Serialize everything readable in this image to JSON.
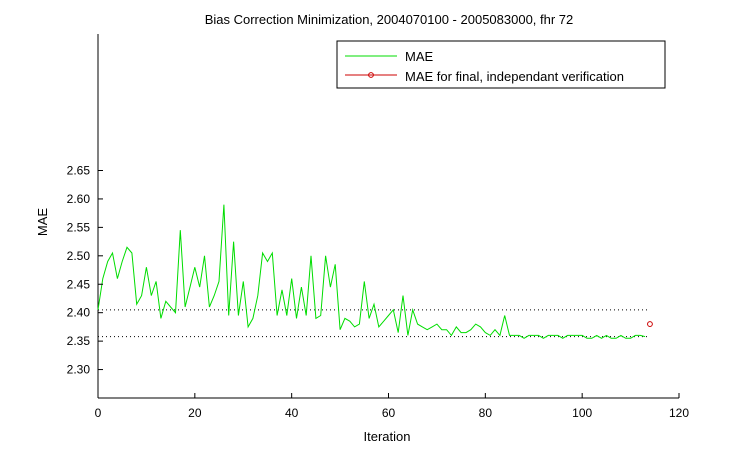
{
  "chart_data": {
    "type": "line",
    "title": "Bias Correction Minimization, 2004070100 - 2005083000, fhr 72",
    "xlabel": "Iteration",
    "ylabel": "MAE",
    "xlim": [
      0,
      120
    ],
    "ylim": [
      2.25,
      2.89
    ],
    "xticks": [
      0,
      20,
      40,
      60,
      80,
      100,
      120
    ],
    "yticks": [
      2.3,
      2.35,
      2.4,
      2.45,
      2.5,
      2.55,
      2.6,
      2.65
    ],
    "ytick_labels": [
      "2.30",
      "2.35",
      "2.40",
      "2.45",
      "2.50",
      "2.55",
      "2.60",
      "2.65"
    ],
    "xtick_labels": [
      "0",
      "20",
      "40",
      "60",
      "80",
      "100",
      "120"
    ],
    "grid": false,
    "legend_position": "top-right",
    "series": [
      {
        "name": "MAE",
        "color": "#00dd00",
        "x": [
          0,
          1,
          2,
          3,
          4,
          5,
          6,
          7,
          8,
          9,
          10,
          11,
          12,
          13,
          14,
          15,
          16,
          17,
          18,
          19,
          20,
          21,
          22,
          23,
          24,
          25,
          26,
          27,
          28,
          29,
          30,
          31,
          32,
          33,
          34,
          35,
          36,
          37,
          38,
          39,
          40,
          41,
          42,
          43,
          44,
          45,
          46,
          47,
          48,
          49,
          50,
          51,
          52,
          53,
          54,
          55,
          56,
          57,
          58,
          59,
          60,
          61,
          62,
          63,
          64,
          65,
          66,
          67,
          68,
          69,
          70,
          71,
          72,
          73,
          74,
          75,
          76,
          77,
          78,
          79,
          80,
          81,
          82,
          83,
          84,
          85,
          86,
          87,
          88,
          89,
          90,
          91,
          92,
          93,
          94,
          95,
          96,
          97,
          98,
          99,
          100,
          101,
          102,
          103,
          104,
          105,
          106,
          107,
          108,
          109,
          110,
          111,
          112,
          113
        ],
        "y": [
          2.405,
          2.46,
          2.49,
          2.505,
          2.46,
          2.49,
          2.515,
          2.505,
          2.415,
          2.43,
          2.48,
          2.43,
          2.455,
          2.39,
          2.42,
          2.41,
          2.4,
          2.545,
          2.41,
          2.445,
          2.48,
          2.445,
          2.5,
          2.41,
          2.43,
          2.455,
          2.59,
          2.395,
          2.525,
          2.395,
          2.455,
          2.375,
          2.39,
          2.43,
          2.505,
          2.49,
          2.505,
          2.395,
          2.44,
          2.395,
          2.46,
          2.39,
          2.445,
          2.395,
          2.5,
          2.39,
          2.395,
          2.5,
          2.445,
          2.485,
          2.37,
          2.39,
          2.385,
          2.375,
          2.38,
          2.455,
          2.39,
          2.415,
          2.375,
          2.385,
          2.395,
          2.405,
          2.365,
          2.43,
          2.36,
          2.405,
          2.38,
          2.375,
          2.37,
          2.375,
          2.38,
          2.37,
          2.37,
          2.36,
          2.375,
          2.365,
          2.365,
          2.37,
          2.38,
          2.375,
          2.365,
          2.36,
          2.37,
          2.36,
          2.395,
          2.36,
          2.36,
          2.36,
          2.355,
          2.36,
          2.36,
          2.36,
          2.355,
          2.36,
          2.36,
          2.36,
          2.355,
          2.36,
          2.36,
          2.36,
          2.36,
          2.355,
          2.355,
          2.36,
          2.355,
          2.36,
          2.355,
          2.355,
          2.36,
          2.355,
          2.355,
          2.36,
          2.36,
          2.358
        ]
      },
      {
        "name": "MAE for final, independant verification",
        "color": "#cc0000",
        "marker": "circle",
        "x": [
          114
        ],
        "y": [
          2.38
        ]
      }
    ],
    "reference_lines": [
      {
        "style": "dotted",
        "color": "#000000",
        "y": 2.405,
        "x_from": 0,
        "x_to": 114
      },
      {
        "style": "dotted",
        "color": "#000000",
        "y": 2.358,
        "x_from": 0,
        "x_to": 114
      }
    ]
  }
}
